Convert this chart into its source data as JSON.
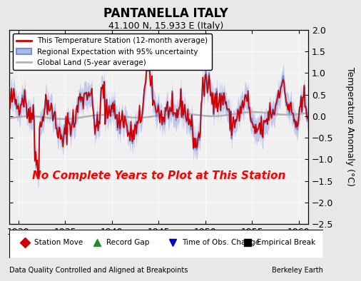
{
  "title": "PANTANELLA ITALY",
  "subtitle": "41.100 N, 15.933 E (Italy)",
  "ylabel": "Temperature Anomaly (°C)",
  "xlabel_note": "Data Quality Controlled and Aligned at Breakpoints",
  "credit": "Berkeley Earth",
  "xlim": [
    1929,
    1961
  ],
  "ylim": [
    -2.5,
    2.0
  ],
  "yticks": [
    -2.5,
    -2,
    -1.5,
    -1,
    -0.5,
    0,
    0.5,
    1,
    1.5,
    2
  ],
  "xticks": [
    1930,
    1935,
    1940,
    1945,
    1950,
    1955,
    1960
  ],
  "no_data_text": "No Complete Years to Plot at This Station",
  "no_data_color": "#ff0000",
  "bg_color": "#e8e8e8",
  "plot_bg_color": "#f0f0f0",
  "regional_color": "#7090d0",
  "regional_fill_color": "#b0b8e8",
  "station_color": "#cc0000",
  "global_color": "#b0b0b0",
  "legend_items": [
    {
      "label": "This Temperature Station (12-month average)",
      "color": "#cc0000",
      "lw": 2
    },
    {
      "label": "Regional Expectation with 95% uncertainty",
      "color": "#7090d0",
      "lw": 2
    },
    {
      "label": "Global Land (5-year average)",
      "color": "#b0b0b0",
      "lw": 2
    }
  ],
  "bottom_legend": [
    {
      "label": "Station Move",
      "color": "#cc0000",
      "marker": "D"
    },
    {
      "label": "Record Gap",
      "color": "#228B22",
      "marker": "^"
    },
    {
      "label": "Time of Obs. Change",
      "color": "#0000cc",
      "marker": "v"
    },
    {
      "label": "Empirical Break",
      "color": "#000000",
      "marker": "s"
    }
  ]
}
